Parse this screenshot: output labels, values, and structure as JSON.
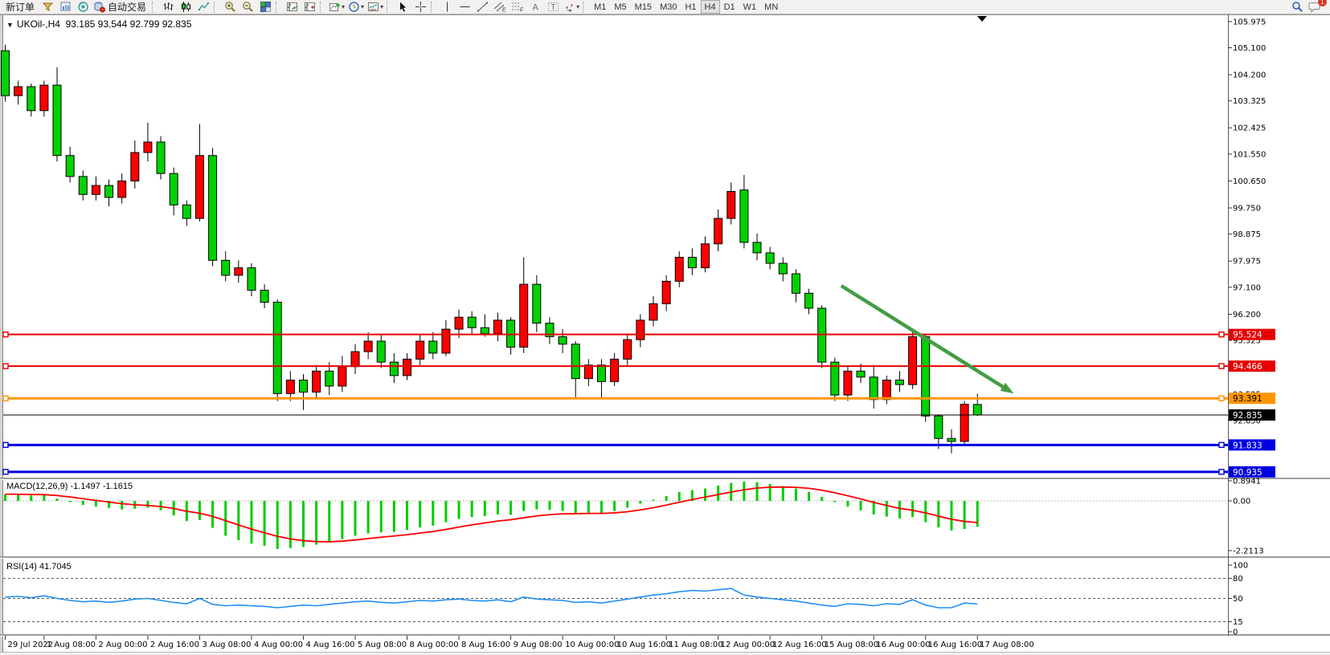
{
  "toolbar": {
    "new_order_label": "新订单",
    "auto_trading_label": "自动交易",
    "timeframes": [
      "M1",
      "M5",
      "M15",
      "M30",
      "H1",
      "H4",
      "D1",
      "W1",
      "MN"
    ],
    "active_timeframe": "H4",
    "notification_count": "1",
    "dd": "▾",
    "glyph_a": "A",
    "glyph_t": "T",
    "glyph_e": "E",
    "glyph_f": "F"
  },
  "chart": {
    "dropdown_glyph": "▼",
    "symbol_period": "UKOil-,H4",
    "ohlc_text": "93.185 93.544 92.799 92.835"
  },
  "chart_data": {
    "type": "candlestick",
    "symbol": "UKOil-",
    "period": "H4",
    "current_bar": {
      "open": "93.185",
      "high": "93.544",
      "low": "92.799",
      "close": "92.835"
    },
    "colors": {
      "bull": "#ff0000",
      "bear": "#00d200",
      "wick": "#000000",
      "macd_hist": "#00cc00",
      "macd_signal": "#ff0000",
      "rsi_line": "#2090f0",
      "arrow": "#449d44"
    },
    "candles": [
      [
        105.0,
        105.2,
        103.3,
        103.5
      ],
      [
        103.5,
        104.0,
        103.2,
        103.8
      ],
      [
        103.8,
        103.9,
        102.8,
        103.0
      ],
      [
        103.0,
        104.0,
        102.8,
        103.85
      ],
      [
        103.85,
        104.45,
        101.3,
        101.5
      ],
      [
        101.5,
        101.8,
        100.6,
        100.8
      ],
      [
        100.8,
        101.0,
        100.0,
        100.2
      ],
      [
        100.2,
        100.8,
        100.0,
        100.5
      ],
      [
        100.5,
        100.7,
        99.8,
        100.1
      ],
      [
        100.1,
        100.9,
        99.9,
        100.65
      ],
      [
        100.65,
        102.0,
        100.4,
        101.6
      ],
      [
        101.6,
        102.6,
        101.3,
        101.95
      ],
      [
        101.95,
        102.15,
        100.7,
        100.9
      ],
      [
        100.9,
        101.1,
        99.5,
        99.85
      ],
      [
        99.85,
        100.0,
        99.15,
        99.4
      ],
      [
        99.4,
        102.55,
        99.3,
        101.5
      ],
      [
        101.5,
        101.75,
        97.8,
        98.0
      ],
      [
        98.0,
        98.3,
        97.3,
        97.5
      ],
      [
        97.5,
        98.0,
        97.25,
        97.75
      ],
      [
        97.75,
        97.9,
        96.8,
        97.0
      ],
      [
        97.0,
        97.2,
        96.4,
        96.6
      ],
      [
        96.6,
        96.7,
        93.3,
        93.55
      ],
      [
        93.55,
        94.3,
        93.3,
        94.0
      ],
      [
        94.0,
        94.2,
        93.0,
        93.6
      ],
      [
        93.6,
        94.5,
        93.4,
        94.3
      ],
      [
        94.3,
        94.6,
        93.5,
        93.8
      ],
      [
        93.8,
        94.8,
        93.6,
        94.45
      ],
      [
        94.45,
        95.2,
        94.2,
        94.95
      ],
      [
        94.95,
        95.6,
        94.7,
        95.3
      ],
      [
        95.3,
        95.5,
        94.4,
        94.6
      ],
      [
        94.6,
        94.9,
        93.9,
        94.15
      ],
      [
        94.15,
        94.9,
        94.0,
        94.7
      ],
      [
        94.7,
        95.5,
        94.5,
        95.3
      ],
      [
        95.3,
        95.6,
        94.7,
        94.9
      ],
      [
        94.9,
        96.0,
        94.8,
        95.7
      ],
      [
        95.7,
        96.35,
        95.4,
        96.1
      ],
      [
        96.1,
        96.3,
        95.5,
        95.75
      ],
      [
        95.75,
        96.2,
        95.45,
        95.55
      ],
      [
        95.55,
        96.25,
        95.3,
        96.0
      ],
      [
        96.0,
        96.1,
        94.85,
        95.1
      ],
      [
        95.1,
        98.1,
        94.9,
        97.2
      ],
      [
        97.2,
        97.5,
        95.6,
        95.9
      ],
      [
        95.9,
        96.1,
        95.2,
        95.45
      ],
      [
        95.45,
        95.7,
        94.9,
        95.2
      ],
      [
        95.2,
        95.3,
        93.35,
        94.05
      ],
      [
        94.05,
        94.7,
        93.8,
        94.5
      ],
      [
        94.5,
        94.7,
        93.4,
        93.95
      ],
      [
        93.95,
        94.9,
        93.8,
        94.7
      ],
      [
        94.7,
        95.5,
        94.5,
        95.35
      ],
      [
        95.35,
        96.2,
        95.1,
        96.0
      ],
      [
        96.0,
        96.8,
        95.8,
        96.55
      ],
      [
        96.55,
        97.5,
        96.3,
        97.3
      ],
      [
        97.3,
        98.3,
        97.1,
        98.1
      ],
      [
        98.1,
        98.4,
        97.5,
        97.75
      ],
      [
        97.75,
        98.8,
        97.6,
        98.55
      ],
      [
        98.55,
        99.7,
        98.3,
        99.4
      ],
      [
        99.4,
        100.6,
        99.2,
        100.3
      ],
      [
        100.35,
        100.85,
        98.4,
        98.6
      ],
      [
        98.6,
        98.9,
        98.0,
        98.25
      ],
      [
        98.25,
        98.45,
        97.7,
        97.9
      ],
      [
        97.9,
        98.1,
        97.3,
        97.55
      ],
      [
        97.55,
        97.7,
        96.6,
        96.9
      ],
      [
        96.9,
        97.05,
        96.2,
        96.4
      ],
      [
        96.4,
        96.5,
        94.4,
        94.6
      ],
      [
        94.6,
        94.75,
        93.3,
        93.5
      ],
      [
        93.5,
        94.5,
        93.3,
        94.3
      ],
      [
        94.3,
        94.55,
        93.9,
        94.1
      ],
      [
        94.1,
        94.5,
        93.05,
        93.35
      ],
      [
        93.35,
        94.15,
        93.2,
        94.0
      ],
      [
        94.0,
        94.3,
        93.6,
        93.85
      ],
      [
        93.85,
        95.6,
        93.7,
        95.45
      ],
      [
        95.45,
        95.55,
        92.6,
        92.8
      ],
      [
        92.8,
        92.85,
        91.7,
        92.05
      ],
      [
        92.05,
        92.35,
        91.55,
        91.95
      ],
      [
        91.95,
        93.3,
        91.85,
        93.19
      ],
      [
        93.185,
        93.544,
        92.799,
        92.835
      ]
    ],
    "time_labels": [
      {
        "i": 0,
        "t": "29 Jul 2022"
      },
      {
        "i": 3,
        "t": "1 Aug 08:00"
      },
      {
        "i": 7,
        "t": "2 Aug 00:00"
      },
      {
        "i": 11,
        "t": "2 Aug 16:00"
      },
      {
        "i": 15,
        "t": "3 Aug 08:00"
      },
      {
        "i": 19,
        "t": "4 Aug 00:00"
      },
      {
        "i": 23,
        "t": "4 Aug 16:00"
      },
      {
        "i": 27,
        "t": "5 Aug 08:00"
      },
      {
        "i": 31,
        "t": "8 Aug 00:00"
      },
      {
        "i": 35,
        "t": "8 Aug 16:00"
      },
      {
        "i": 39,
        "t": "9 Aug 08:00"
      },
      {
        "i": 43,
        "t": "10 Aug 00:00"
      },
      {
        "i": 47,
        "t": "10 Aug 16:00"
      },
      {
        "i": 51,
        "t": "11 Aug 08:00"
      },
      {
        "i": 55,
        "t": "12 Aug 00:00"
      },
      {
        "i": 59,
        "t": "12 Aug 16:00"
      },
      {
        "i": 63,
        "t": "15 Aug 08:00"
      },
      {
        "i": 67,
        "t": "16 Aug 00:00"
      },
      {
        "i": 71,
        "t": "16 Aug 16:00"
      },
      {
        "i": 75,
        "t": "17 Aug 08:00"
      }
    ],
    "price_scale": [
      "105.975",
      "105.100",
      "104.200",
      "103.325",
      "102.425",
      "101.550",
      "100.650",
      "99.750",
      "98.875",
      "97.975",
      "97.100",
      "96.200",
      "95.325",
      "94.425",
      "93.525",
      "92.650",
      "91.750",
      "90.850"
    ],
    "hlines": [
      {
        "price": 95.524,
        "label": "95.524",
        "color": "#e60000",
        "width": 2,
        "badge_bg": "#e60000",
        "badge_fg": "#ffffff",
        "handles": true
      },
      {
        "price": 94.466,
        "label": "94.466",
        "color": "#e60000",
        "width": 2,
        "badge_bg": "#e60000",
        "badge_fg": "#ffffff",
        "handles": true
      },
      {
        "price": 93.391,
        "label": "93.391",
        "color": "#ff9500",
        "width": 3,
        "badge_bg": "#ff9500",
        "badge_fg": "#000000",
        "handles": true
      },
      {
        "price": 92.835,
        "label": "92.835",
        "color": "#000000",
        "width": 1,
        "badge_bg": "#000000",
        "badge_fg": "#ffffff",
        "handles": false
      },
      {
        "price": 91.833,
        "label": "91.833",
        "color": "#0000e0",
        "width": 3,
        "badge_bg": "#0000e0",
        "badge_fg": "#ffffff",
        "handles": true
      },
      {
        "price": 90.935,
        "label": "90.935",
        "color": "#0000e0",
        "width": 3,
        "badge_bg": "#0000e0",
        "badge_fg": "#ffffff",
        "handles": true
      }
    ],
    "trend_arrow": {
      "i1": 64.5,
      "p1": 97.15,
      "i2": 77.8,
      "p2": 93.55
    },
    "macd": {
      "name": "MACD(12,26,9)",
      "values": "-1.1497 -1.1615",
      "scale": [
        {
          "v": 0.8941,
          "t": "0.8941"
        },
        {
          "v": 0,
          "t": "0.00"
        },
        {
          "v": -2.2113,
          "t": "-2.2113"
        }
      ],
      "hist": [
        0.3,
        0.28,
        0.24,
        0.26,
        0.1,
        -0.05,
        -0.18,
        -0.25,
        -0.32,
        -0.38,
        -0.35,
        -0.3,
        -0.42,
        -0.65,
        -0.9,
        -0.85,
        -1.2,
        -1.55,
        -1.75,
        -1.9,
        -2.0,
        -2.14,
        -2.1,
        -2.05,
        -1.95,
        -1.85,
        -1.7,
        -1.55,
        -1.45,
        -1.4,
        -1.38,
        -1.3,
        -1.18,
        -1.1,
        -0.95,
        -0.8,
        -0.72,
        -0.68,
        -0.6,
        -0.62,
        -0.45,
        -0.38,
        -0.4,
        -0.45,
        -0.55,
        -0.52,
        -0.55,
        -0.45,
        -0.3,
        -0.12,
        0.05,
        0.22,
        0.4,
        0.48,
        0.55,
        0.68,
        0.8,
        0.86,
        0.83,
        0.75,
        0.65,
        0.55,
        0.4,
        0.18,
        -0.05,
        -0.25,
        -0.42,
        -0.6,
        -0.7,
        -0.78,
        -0.72,
        -0.95,
        -1.18,
        -1.32,
        -1.25,
        -1.15
      ]
    },
    "rsi": {
      "name": "RSI(14)",
      "value": "41.7045",
      "scale": [
        {
          "v": 100,
          "t": "100"
        },
        {
          "v": 80,
          "t": "80"
        },
        {
          "v": 50,
          "t": "50"
        },
        {
          "v": 15,
          "t": "15"
        },
        {
          "v": 0,
          "t": "0"
        }
      ],
      "levels": [
        80,
        50,
        15
      ],
      "points": [
        52,
        53,
        51,
        54,
        50,
        47,
        45,
        46,
        44,
        46,
        49,
        50,
        47,
        44,
        42,
        50,
        41,
        39,
        40,
        39,
        38,
        36,
        38,
        40,
        39,
        41,
        43,
        45,
        46,
        44,
        43,
        45,
        47,
        46,
        48,
        49,
        47,
        46,
        48,
        45,
        52,
        49,
        48,
        47,
        44,
        45,
        43,
        46,
        49,
        52,
        55,
        57,
        60,
        62,
        61,
        63,
        65,
        55,
        52,
        50,
        48,
        46,
        43,
        40,
        38,
        42,
        41,
        39,
        42,
        41,
        48,
        40,
        36,
        36,
        43,
        41.7
      ]
    }
  }
}
